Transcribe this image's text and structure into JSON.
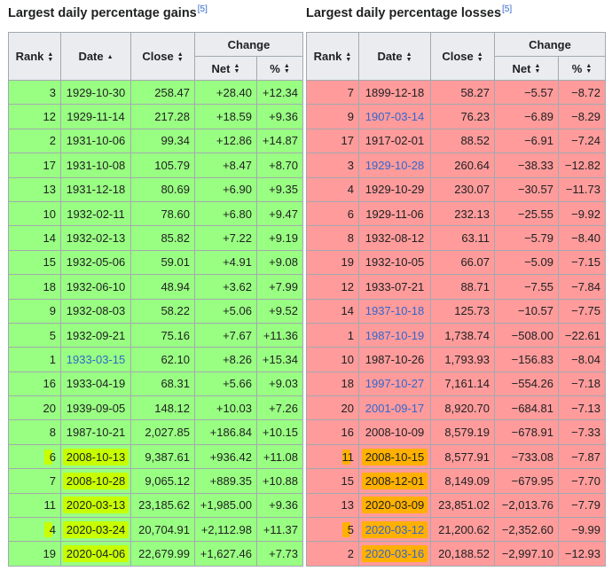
{
  "gains": {
    "caption": "Largest daily percentage gains",
    "ref": "[5]",
    "headers": {
      "rank": "Rank",
      "date": "Date",
      "close": "Close",
      "change": "Change",
      "net": "Net",
      "pct": "%"
    },
    "rows": [
      {
        "rank": "3",
        "date": "1929-10-30",
        "close": "258.47",
        "net": "+28.40",
        "pct": "+12.34"
      },
      {
        "rank": "12",
        "date": "1929-11-14",
        "close": "217.28",
        "net": "+18.59",
        "pct": "+9.36"
      },
      {
        "rank": "2",
        "date": "1931-10-06",
        "close": "99.34",
        "net": "+12.86",
        "pct": "+14.87"
      },
      {
        "rank": "17",
        "date": "1931-10-08",
        "close": "105.79",
        "net": "+8.47",
        "pct": "+8.70"
      },
      {
        "rank": "13",
        "date": "1931-12-18",
        "close": "80.69",
        "net": "+6.90",
        "pct": "+9.35"
      },
      {
        "rank": "10",
        "date": "1932-02-11",
        "close": "78.60",
        "net": "+6.80",
        "pct": "+9.47"
      },
      {
        "rank": "14",
        "date": "1932-02-13",
        "close": "85.82",
        "net": "+7.22",
        "pct": "+9.19"
      },
      {
        "rank": "15",
        "date": "1932-05-06",
        "close": "59.01",
        "net": "+4.91",
        "pct": "+9.08"
      },
      {
        "rank": "18",
        "date": "1932-06-10",
        "close": "48.94",
        "net": "+3.62",
        "pct": "+7.99"
      },
      {
        "rank": "9",
        "date": "1932-08-03",
        "close": "58.22",
        "net": "+5.06",
        "pct": "+9.52"
      },
      {
        "rank": "5",
        "date": "1932-09-21",
        "close": "75.16",
        "net": "+7.67",
        "pct": "+11.36"
      },
      {
        "rank": "1",
        "date": "1933-03-15",
        "close": "62.10",
        "net": "+8.26",
        "pct": "+15.34"
      },
      {
        "rank": "16",
        "date": "1933-04-19",
        "close": "68.31",
        "net": "+5.66",
        "pct": "+9.03"
      },
      {
        "rank": "20",
        "date": "1939-09-05",
        "close": "148.12",
        "net": "+10.03",
        "pct": "+7.26"
      },
      {
        "rank": "8",
        "date": "1987-10-21",
        "close": "2,027.85",
        "net": "+186.84",
        "pct": "+10.15"
      },
      {
        "rank": "6",
        "date": "2008-10-13",
        "close": "9,387.61",
        "net": "+936.42",
        "pct": "+11.08"
      },
      {
        "rank": "7",
        "date": "2008-10-28",
        "close": "9,065.12",
        "net": "+889.35",
        "pct": "+10.88"
      },
      {
        "rank": "11",
        "date": "2020-03-13",
        "close": "23,185.62",
        "net": "+1,985.00",
        "pct": "+9.36"
      },
      {
        "rank": "4",
        "date": "2020-03-24",
        "close": "20,704.91",
        "net": "+2,112.98",
        "pct": "+11.37"
      },
      {
        "rank": "19",
        "date": "2020-04-06",
        "close": "22,679.99",
        "net": "+1,627.46",
        "pct": "+7.73"
      }
    ]
  },
  "losses": {
    "caption": "Largest daily percentage losses",
    "ref": "[5]",
    "headers": {
      "rank": "Rank",
      "date": "Date",
      "close": "Close",
      "change": "Change",
      "net": "Net",
      "pct": "%"
    },
    "rows": [
      {
        "rank": "7",
        "date": "1899-12-18",
        "close": "58.27",
        "net": "−5.57",
        "pct": "−8.72"
      },
      {
        "rank": "9",
        "date": "1907-03-14",
        "close": "76.23",
        "net": "−6.89",
        "pct": "−8.29"
      },
      {
        "rank": "17",
        "date": "1917-02-01",
        "close": "88.52",
        "net": "−6.91",
        "pct": "−7.24"
      },
      {
        "rank": "3",
        "date": "1929-10-28",
        "close": "260.64",
        "net": "−38.33",
        "pct": "−12.82"
      },
      {
        "rank": "4",
        "date": "1929-10-29",
        "close": "230.07",
        "net": "−30.57",
        "pct": "−11.73"
      },
      {
        "rank": "6",
        "date": "1929-11-06",
        "close": "232.13",
        "net": "−25.55",
        "pct": "−9.92"
      },
      {
        "rank": "8",
        "date": "1932-08-12",
        "close": "63.11",
        "net": "−5.79",
        "pct": "−8.40"
      },
      {
        "rank": "19",
        "date": "1932-10-05",
        "close": "66.07",
        "net": "−5.09",
        "pct": "−7.15"
      },
      {
        "rank": "12",
        "date": "1933-07-21",
        "close": "88.71",
        "net": "−7.55",
        "pct": "−7.84"
      },
      {
        "rank": "14",
        "date": "1937-10-18",
        "close": "125.73",
        "net": "−10.57",
        "pct": "−7.75"
      },
      {
        "rank": "1",
        "date": "1987-10-19",
        "close": "1,738.74",
        "net": "−508.00",
        "pct": "−22.61"
      },
      {
        "rank": "10",
        "date": "1987-10-26",
        "close": "1,793.93",
        "net": "−156.83",
        "pct": "−8.04"
      },
      {
        "rank": "18",
        "date": "1997-10-27",
        "close": "7,161.14",
        "net": "−554.26",
        "pct": "−7.18"
      },
      {
        "rank": "20",
        "date": "2001-09-17",
        "close": "8,920.70",
        "net": "−684.81",
        "pct": "−7.13"
      },
      {
        "rank": "16",
        "date": "2008-10-09",
        "close": "8,579.19",
        "net": "−678.91",
        "pct": "−7.33"
      },
      {
        "rank": "11",
        "date": "2008-10-15",
        "close": "8,577.91",
        "net": "−733.08",
        "pct": "−7.87"
      },
      {
        "rank": "15",
        "date": "2008-12-01",
        "close": "8,149.09",
        "net": "−679.95",
        "pct": "−7.70"
      },
      {
        "rank": "13",
        "date": "2020-03-09",
        "close": "23,851.02",
        "net": "−2,013.76",
        "pct": "−7.79"
      },
      {
        "rank": "5",
        "date": "2020-03-12",
        "close": "21,200.62",
        "net": "−2,352.60",
        "pct": "−9.99"
      },
      {
        "rank": "2",
        "date": "2020-03-16",
        "close": "20,188.52",
        "net": "−2,997.10",
        "pct": "−12.93"
      }
    ]
  },
  "styles": {
    "gain_row_color": "#99ff82",
    "loss_row_color": "#ff9b9b",
    "header_bg": "#eaecf0",
    "link_color": "#3366cc",
    "highlight_yellow": "#c7ff00",
    "highlight_orange": "#ffb000"
  },
  "icons": {
    "sort_both": "sort-both-icon",
    "sort_asc": "sort-asc-icon"
  }
}
